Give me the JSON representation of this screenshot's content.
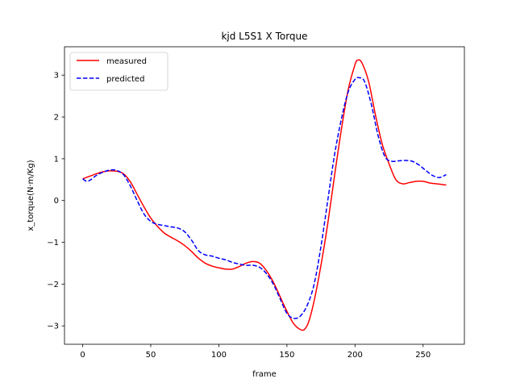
{
  "chart_data": {
    "type": "line",
    "title": "kjd L5S1 X Torque",
    "xlabel": "frame",
    "ylabel": "x_torque(N·m/Kg)",
    "xlim": [
      -13.35,
      280.35
    ],
    "ylim": [
      -3.44,
      3.68
    ],
    "xticks": [
      0,
      50,
      100,
      150,
      200,
      250
    ],
    "yticks": [
      -3,
      -2,
      -1,
      0,
      1,
      2,
      3
    ],
    "grid": false,
    "legend_position": "upper left",
    "series": [
      {
        "name": "measured",
        "color": "#ff0000",
        "style": "solid",
        "points": [
          [
            0,
            0.52
          ],
          [
            5,
            0.58
          ],
          [
            10,
            0.64
          ],
          [
            15,
            0.69
          ],
          [
            20,
            0.71
          ],
          [
            25,
            0.7
          ],
          [
            30,
            0.64
          ],
          [
            35,
            0.45
          ],
          [
            40,
            0.15
          ],
          [
            45,
            -0.15
          ],
          [
            50,
            -0.42
          ],
          [
            55,
            -0.62
          ],
          [
            60,
            -0.78
          ],
          [
            65,
            -0.88
          ],
          [
            70,
            -0.97
          ],
          [
            75,
            -1.08
          ],
          [
            80,
            -1.22
          ],
          [
            85,
            -1.38
          ],
          [
            90,
            -1.5
          ],
          [
            95,
            -1.57
          ],
          [
            100,
            -1.61
          ],
          [
            105,
            -1.64
          ],
          [
            110,
            -1.64
          ],
          [
            115,
            -1.58
          ],
          [
            120,
            -1.5
          ],
          [
            125,
            -1.46
          ],
          [
            130,
            -1.5
          ],
          [
            135,
            -1.68
          ],
          [
            140,
            -1.95
          ],
          [
            145,
            -2.3
          ],
          [
            150,
            -2.65
          ],
          [
            155,
            -2.95
          ],
          [
            160,
            -3.09
          ],
          [
            163,
            -3.08
          ],
          [
            166,
            -2.9
          ],
          [
            170,
            -2.4
          ],
          [
            175,
            -1.55
          ],
          [
            180,
            -0.55
          ],
          [
            185,
            0.6
          ],
          [
            190,
            1.7
          ],
          [
            195,
            2.65
          ],
          [
            200,
            3.25
          ],
          [
            202,
            3.36
          ],
          [
            205,
            3.3
          ],
          [
            210,
            2.85
          ],
          [
            215,
            2.05
          ],
          [
            220,
            1.35
          ],
          [
            225,
            0.88
          ],
          [
            230,
            0.5
          ],
          [
            235,
            0.4
          ],
          [
            240,
            0.43
          ],
          [
            245,
            0.46
          ],
          [
            250,
            0.46
          ],
          [
            255,
            0.42
          ],
          [
            260,
            0.4
          ],
          [
            267,
            0.37
          ]
        ]
      },
      {
        "name": "predicted",
        "color": "#0000ff",
        "style": "dashed",
        "points": [
          [
            0,
            0.52
          ],
          [
            3,
            0.46
          ],
          [
            6,
            0.5
          ],
          [
            10,
            0.6
          ],
          [
            15,
            0.68
          ],
          [
            20,
            0.73
          ],
          [
            25,
            0.72
          ],
          [
            30,
            0.62
          ],
          [
            35,
            0.35
          ],
          [
            40,
            0.0
          ],
          [
            45,
            -0.32
          ],
          [
            50,
            -0.5
          ],
          [
            55,
            -0.57
          ],
          [
            60,
            -0.6
          ],
          [
            65,
            -0.63
          ],
          [
            70,
            -0.66
          ],
          [
            75,
            -0.75
          ],
          [
            80,
            -0.95
          ],
          [
            85,
            -1.2
          ],
          [
            90,
            -1.3
          ],
          [
            95,
            -1.33
          ],
          [
            100,
            -1.38
          ],
          [
            105,
            -1.42
          ],
          [
            110,
            -1.48
          ],
          [
            115,
            -1.52
          ],
          [
            120,
            -1.55
          ],
          [
            125,
            -1.55
          ],
          [
            130,
            -1.6
          ],
          [
            135,
            -1.75
          ],
          [
            140,
            -2.0
          ],
          [
            145,
            -2.35
          ],
          [
            150,
            -2.7
          ],
          [
            155,
            -2.82
          ],
          [
            160,
            -2.76
          ],
          [
            165,
            -2.5
          ],
          [
            170,
            -2.0
          ],
          [
            175,
            -1.1
          ],
          [
            180,
            0.0
          ],
          [
            185,
            1.1
          ],
          [
            190,
            1.95
          ],
          [
            195,
            2.6
          ],
          [
            200,
            2.9
          ],
          [
            203,
            2.94
          ],
          [
            207,
            2.85
          ],
          [
            212,
            2.3
          ],
          [
            217,
            1.55
          ],
          [
            222,
            1.05
          ],
          [
            227,
            0.94
          ],
          [
            232,
            0.95
          ],
          [
            237,
            0.96
          ],
          [
            242,
            0.94
          ],
          [
            247,
            0.85
          ],
          [
            252,
            0.72
          ],
          [
            257,
            0.6
          ],
          [
            262,
            0.55
          ],
          [
            267,
            0.62
          ]
        ]
      }
    ]
  }
}
